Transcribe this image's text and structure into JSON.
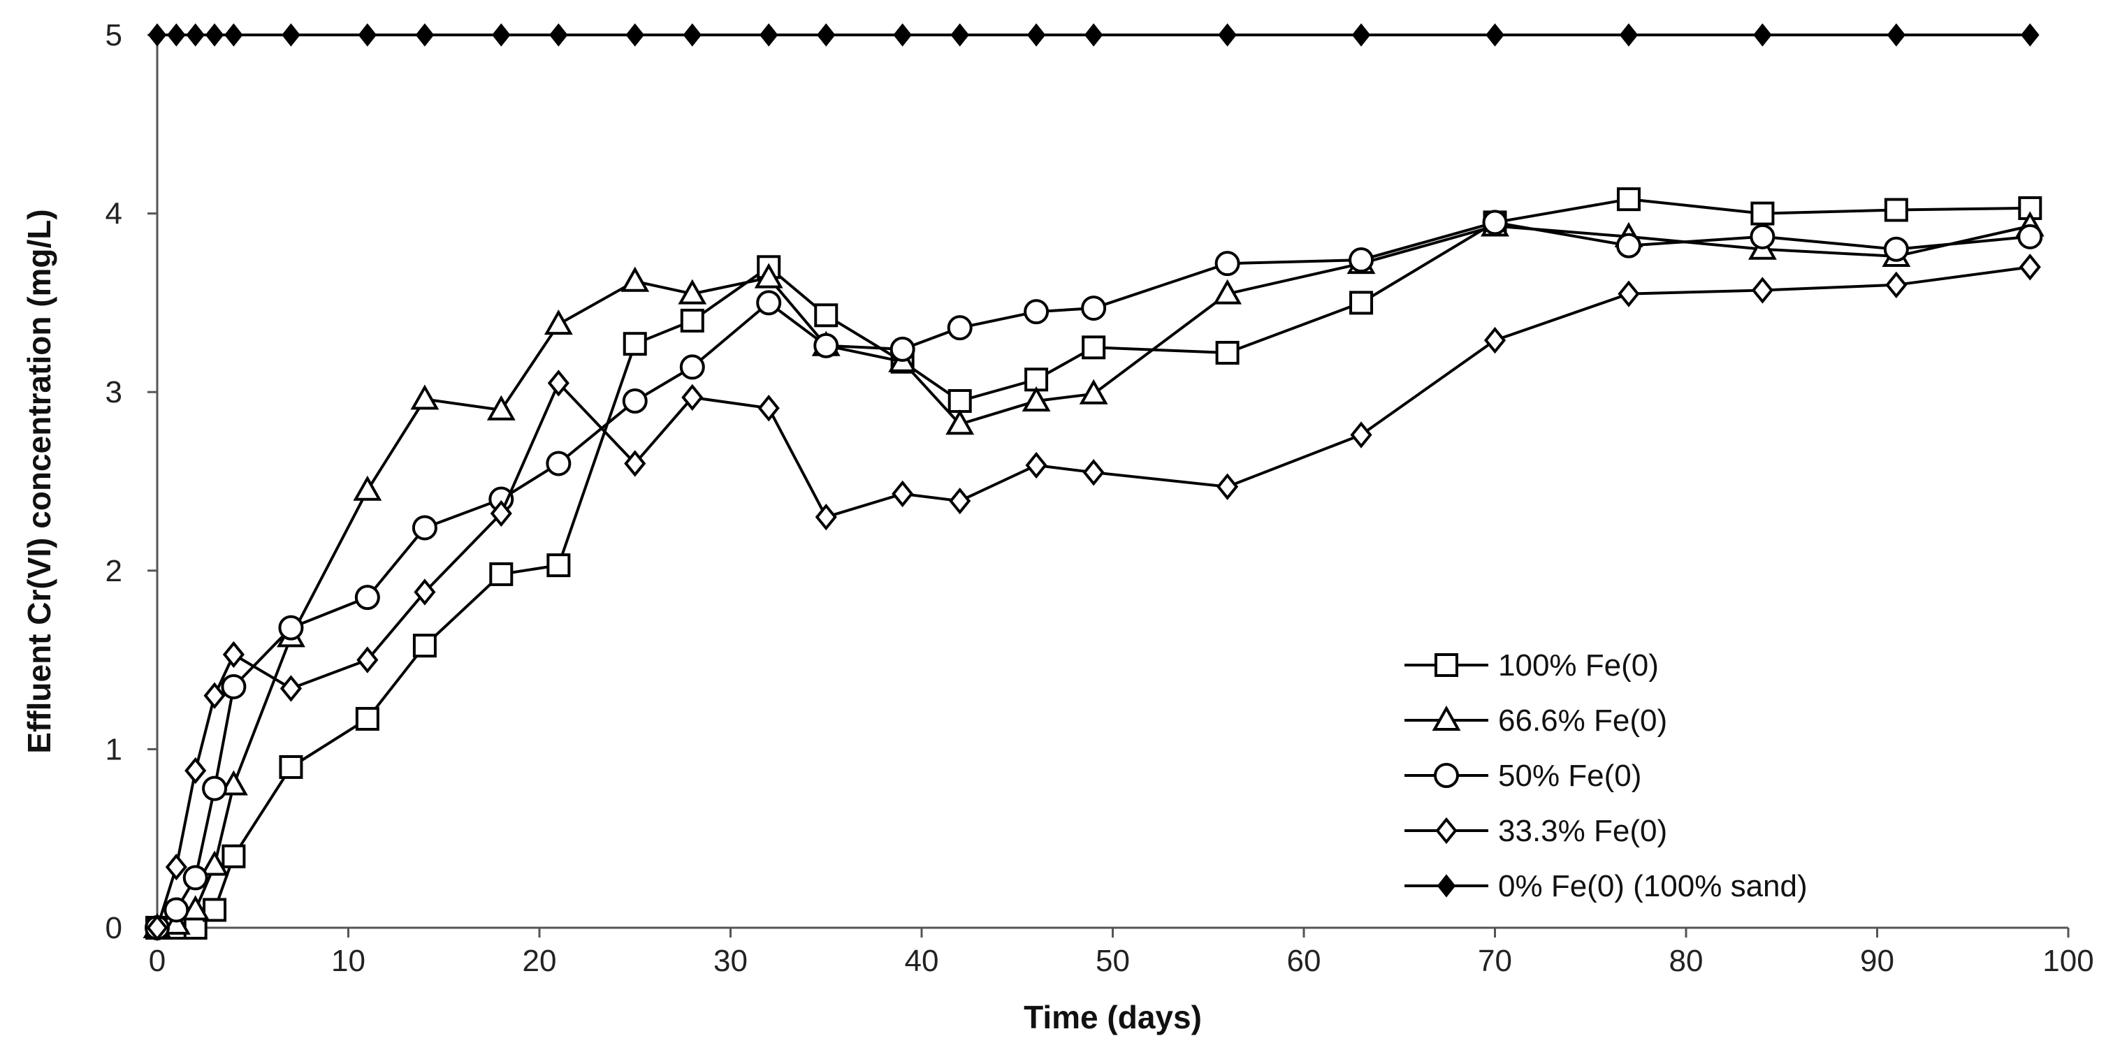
{
  "chart_data": {
    "type": "line",
    "title": "",
    "xlabel": "Time (days)",
    "ylabel": "Effluent Cr(VI) concentration (mg/L)",
    "xlim": [
      0,
      100
    ],
    "ylim": [
      0,
      5
    ],
    "xticks": [
      0,
      10,
      20,
      30,
      40,
      50,
      60,
      70,
      80,
      90,
      100
    ],
    "yticks": [
      0,
      1,
      2,
      3,
      4,
      5
    ],
    "grid": false,
    "legend_position": "lower-right",
    "series": [
      {
        "name": "100% Fe(0)",
        "marker": "square",
        "points": [
          [
            0,
            0
          ],
          [
            1,
            0
          ],
          [
            2,
            0
          ],
          [
            3,
            0.1
          ],
          [
            4,
            0.4
          ],
          [
            7,
            0.9
          ],
          [
            11,
            1.17
          ],
          [
            14,
            1.58
          ],
          [
            18,
            1.98
          ],
          [
            21,
            2.03
          ],
          [
            25,
            3.27
          ],
          [
            28,
            3.4
          ],
          [
            32,
            3.7
          ],
          [
            35,
            3.43
          ],
          [
            39,
            3.17
          ],
          [
            42,
            2.95
          ],
          [
            46,
            3.07
          ],
          [
            49,
            3.25
          ],
          [
            56,
            3.22
          ],
          [
            63,
            3.5
          ],
          [
            70,
            3.95
          ],
          [
            77,
            4.08
          ],
          [
            84,
            4.0
          ],
          [
            91,
            4.02
          ],
          [
            98,
            4.03
          ]
        ]
      },
      {
        "name": "66.6% Fe(0)",
        "marker": "triangle",
        "points": [
          [
            0,
            0
          ],
          [
            1,
            0.02
          ],
          [
            2,
            0.1
          ],
          [
            3,
            0.35
          ],
          [
            4,
            0.8
          ],
          [
            7,
            1.63
          ],
          [
            11,
            2.45
          ],
          [
            14,
            2.96
          ],
          [
            18,
            2.9
          ],
          [
            21,
            3.38
          ],
          [
            25,
            3.62
          ],
          [
            28,
            3.55
          ],
          [
            32,
            3.64
          ],
          [
            35,
            3.26
          ],
          [
            39,
            3.17
          ],
          [
            42,
            2.82
          ],
          [
            46,
            2.95
          ],
          [
            49,
            2.99
          ],
          [
            56,
            3.55
          ],
          [
            63,
            3.72
          ],
          [
            70,
            3.93
          ],
          [
            77,
            3.87
          ],
          [
            84,
            3.8
          ],
          [
            91,
            3.76
          ],
          [
            98,
            3.93
          ]
        ]
      },
      {
        "name": "50% Fe(0)",
        "marker": "circle",
        "points": [
          [
            0,
            0
          ],
          [
            1,
            0.1
          ],
          [
            2,
            0.28
          ],
          [
            3,
            0.78
          ],
          [
            4,
            1.35
          ],
          [
            7,
            1.68
          ],
          [
            11,
            1.85
          ],
          [
            14,
            2.24
          ],
          [
            18,
            2.4
          ],
          [
            21,
            2.6
          ],
          [
            25,
            2.95
          ],
          [
            28,
            3.14
          ],
          [
            32,
            3.5
          ],
          [
            35,
            3.26
          ],
          [
            39,
            3.24
          ],
          [
            42,
            3.36
          ],
          [
            46,
            3.45
          ],
          [
            49,
            3.47
          ],
          [
            56,
            3.72
          ],
          [
            63,
            3.74
          ],
          [
            70,
            3.95
          ],
          [
            77,
            3.82
          ],
          [
            84,
            3.87
          ],
          [
            91,
            3.8
          ],
          [
            98,
            3.87
          ]
        ]
      },
      {
        "name": "33.3% Fe(0)",
        "marker": "diamond",
        "points": [
          [
            0,
            0
          ],
          [
            1,
            0.34
          ],
          [
            2,
            0.88
          ],
          [
            3,
            1.3
          ],
          [
            4,
            1.53
          ],
          [
            7,
            1.34
          ],
          [
            11,
            1.5
          ],
          [
            14,
            1.88
          ],
          [
            18,
            2.32
          ],
          [
            21,
            3.05
          ],
          [
            25,
            2.6
          ],
          [
            28,
            2.97
          ],
          [
            32,
            2.91
          ],
          [
            35,
            2.3
          ],
          [
            39,
            2.43
          ],
          [
            42,
            2.39
          ],
          [
            46,
            2.59
          ],
          [
            49,
            2.55
          ],
          [
            56,
            2.47
          ],
          [
            63,
            2.76
          ],
          [
            70,
            3.29
          ],
          [
            77,
            3.55
          ],
          [
            84,
            3.57
          ],
          [
            91,
            3.6
          ],
          [
            98,
            3.7
          ]
        ]
      },
      {
        "name": "0% Fe(0) (100% sand)",
        "marker": "filled-diamond",
        "points": [
          [
            0,
            5
          ],
          [
            1,
            5
          ],
          [
            2,
            5
          ],
          [
            3,
            5
          ],
          [
            4,
            5
          ],
          [
            7,
            5
          ],
          [
            11,
            5
          ],
          [
            14,
            5
          ],
          [
            18,
            5
          ],
          [
            21,
            5
          ],
          [
            25,
            5
          ],
          [
            28,
            5
          ],
          [
            32,
            5
          ],
          [
            35,
            5
          ],
          [
            39,
            5
          ],
          [
            42,
            5
          ],
          [
            46,
            5
          ],
          [
            49,
            5
          ],
          [
            56,
            5
          ],
          [
            63,
            5
          ],
          [
            70,
            5
          ],
          [
            77,
            5
          ],
          [
            84,
            5
          ],
          [
            91,
            5
          ],
          [
            98,
            5
          ]
        ]
      }
    ]
  }
}
